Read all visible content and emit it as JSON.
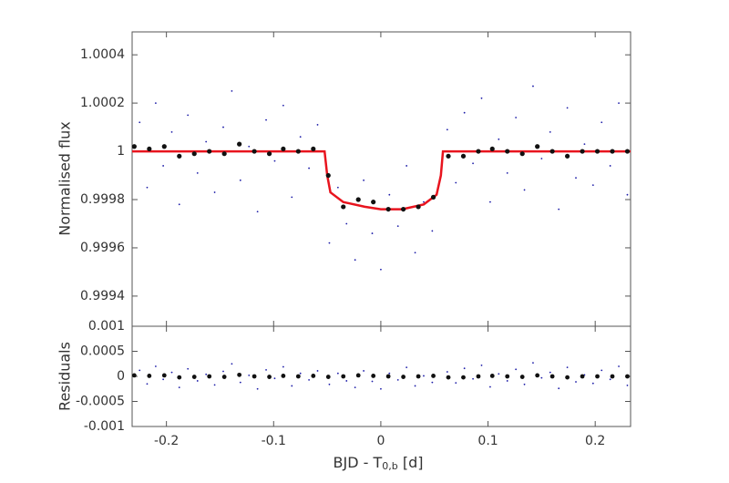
{
  "chart_data": [
    {
      "type": "scatter",
      "ylabel": "Normalised flux",
      "xlim": [
        -0.232,
        0.233
      ],
      "xticks": [
        -0.2,
        -0.1,
        0,
        0.1,
        0.2
      ],
      "ylim": [
        0.999275,
        1.000495
      ],
      "yticks": [
        0.9994,
        0.9996,
        0.9998,
        1,
        1.0002,
        1.0004
      ],
      "series": [
        {
          "mode": "markers",
          "size": 0.9,
          "color": "#1c1ca8",
          "x": [
            -0.225,
            -0.218,
            -0.21,
            -0.203,
            -0.195,
            -0.188,
            -0.18,
            -0.171,
            -0.163,
            -0.155,
            -0.147,
            -0.139,
            -0.131,
            -0.123,
            -0.115,
            -0.107,
            -0.099,
            -0.091,
            -0.083,
            -0.075,
            -0.067,
            -0.059,
            -0.048,
            -0.04,
            -0.032,
            -0.024,
            -0.016,
            -0.008,
            0.0,
            0.008,
            0.016,
            0.024,
            0.032,
            0.04,
            0.048,
            0.062,
            0.07,
            0.078,
            0.086,
            0.094,
            0.102,
            0.11,
            0.118,
            0.126,
            0.134,
            0.142,
            0.15,
            0.158,
            0.166,
            0.174,
            0.182,
            0.19,
            0.198,
            0.206,
            0.214,
            0.222,
            0.23
          ],
          "values": [
            1.00012,
            0.99985,
            1.0002,
            0.99994,
            1.00008,
            0.99978,
            1.00015,
            0.99991,
            1.00004,
            0.99983,
            1.0001,
            1.00025,
            0.99988,
            1.00002,
            0.99975,
            1.00013,
            0.99996,
            1.00019,
            0.99981,
            1.00006,
            0.99993,
            1.00011,
            0.99962,
            0.99985,
            0.9997,
            0.99955,
            0.99988,
            0.99966,
            0.99951,
            0.99982,
            0.99969,
            0.99994,
            0.99958,
            0.99979,
            0.99967,
            1.00009,
            0.99987,
            1.00016,
            0.99995,
            1.00022,
            0.99979,
            1.00005,
            0.99991,
            1.00014,
            0.99984,
            1.00027,
            0.99997,
            1.00008,
            0.99976,
            1.00018,
            0.99989,
            1.00003,
            0.99986,
            1.00012,
            0.99994,
            1.0002,
            0.99982
          ]
        },
        {
          "mode": "line",
          "width": 2.5,
          "color": "#e8141e",
          "x": [
            -0.232,
            -0.0525,
            -0.05,
            -0.047,
            -0.035,
            -0.015,
            0,
            0.02,
            0.04,
            0.052,
            0.056,
            0.058,
            0.233
          ],
          "values": [
            1,
            1,
            0.9999,
            0.99983,
            0.99979,
            0.99977,
            0.99976,
            0.99976,
            0.99978,
            0.99982,
            0.9999,
            1,
            1
          ]
        },
        {
          "mode": "markers",
          "size": 2.6,
          "color": "#111111",
          "x": [
            -0.23,
            -0.216,
            -0.202,
            -0.188,
            -0.174,
            -0.16,
            -0.146,
            -0.132,
            -0.118,
            -0.104,
            -0.091,
            -0.077,
            -0.063,
            -0.049,
            -0.035,
            -0.021,
            -0.007,
            0.007,
            0.021,
            0.035,
            0.049,
            0.063,
            0.077,
            0.091,
            0.104,
            0.118,
            0.132,
            0.146,
            0.16,
            0.174,
            0.188,
            0.202,
            0.216,
            0.23
          ],
          "values": [
            1.00002,
            1.00001,
            1.00002,
            0.99998,
            0.99999,
            1.0,
            0.99999,
            1.00003,
            1.0,
            0.99999,
            1.00001,
            1.0,
            1.00001,
            0.9999,
            0.99977,
            0.9998,
            0.99979,
            0.99976,
            0.99976,
            0.99977,
            0.99981,
            0.99998,
            0.99998,
            1.0,
            1.00001,
            1.0,
            0.99999,
            1.00002,
            1.0,
            0.99998,
            1.0,
            1.0,
            1.0,
            1.0
          ]
        }
      ]
    },
    {
      "type": "scatter",
      "ylabel": "Residuals",
      "xlabel": [
        "BJD - T",
        "0,b",
        " [d]"
      ],
      "xlim": [
        -0.232,
        0.233
      ],
      "xticks": [
        -0.2,
        -0.1,
        0,
        0.1,
        0.2
      ],
      "ylim": [
        -0.001,
        0.001
      ],
      "yticks": [
        -0.001,
        -0.0005,
        0,
        0.0005,
        0.001
      ],
      "series": [
        {
          "mode": "markers",
          "size": 0.9,
          "color": "#1c1ca8",
          "x": [
            -0.225,
            -0.218,
            -0.21,
            -0.203,
            -0.195,
            -0.188,
            -0.18,
            -0.171,
            -0.163,
            -0.155,
            -0.147,
            -0.139,
            -0.131,
            -0.123,
            -0.115,
            -0.107,
            -0.099,
            -0.091,
            -0.083,
            -0.075,
            -0.067,
            -0.059,
            -0.048,
            -0.04,
            -0.032,
            -0.024,
            -0.016,
            -0.008,
            0.0,
            0.008,
            0.016,
            0.024,
            0.032,
            0.04,
            0.048,
            0.062,
            0.07,
            0.078,
            0.086,
            0.094,
            0.102,
            0.11,
            0.118,
            0.126,
            0.134,
            0.142,
            0.15,
            0.158,
            0.166,
            0.174,
            0.182,
            0.19,
            0.198,
            0.206,
            0.214,
            0.222,
            0.23
          ],
          "values": [
            0.00012,
            -0.00015,
            0.0002,
            -6e-05,
            8e-05,
            -0.00022,
            0.00015,
            -9e-05,
            4e-05,
            -0.00017,
            0.0001,
            0.00025,
            -0.00012,
            2e-05,
            -0.00025,
            0.00013,
            -4e-05,
            0.00019,
            -0.00019,
            6e-05,
            -7e-05,
            0.00011,
            -0.00016,
            6e-05,
            -9e-05,
            -0.00022,
            0.00011,
            -0.0001,
            -0.00025,
            6e-05,
            -7e-05,
            0.00018,
            -0.00019,
            1e-05,
            -0.00012,
            9e-05,
            -0.00013,
            0.00016,
            -5e-05,
            0.00022,
            -0.00021,
            5e-05,
            -9e-05,
            0.00014,
            -0.00016,
            0.00027,
            -3e-05,
            8e-05,
            -0.00024,
            0.00018,
            -0.00011,
            3e-05,
            -0.00014,
            0.00012,
            -6e-05,
            0.0002,
            -0.00018
          ]
        },
        {
          "mode": "markers",
          "size": 2.4,
          "color": "#111111",
          "x": [
            -0.23,
            -0.216,
            -0.202,
            -0.188,
            -0.174,
            -0.16,
            -0.146,
            -0.132,
            -0.118,
            -0.104,
            -0.091,
            -0.077,
            -0.063,
            -0.049,
            -0.035,
            -0.021,
            -0.007,
            0.007,
            0.021,
            0.035,
            0.049,
            0.063,
            0.077,
            0.091,
            0.104,
            0.118,
            0.132,
            0.146,
            0.16,
            0.174,
            0.188,
            0.202,
            0.216,
            0.23
          ],
          "values": [
            2e-05,
            1e-05,
            2e-05,
            -2e-05,
            -1e-05,
            0,
            -1e-05,
            3e-05,
            0,
            -1e-05,
            1e-05,
            0,
            1e-05,
            -1e-05,
            0,
            2e-05,
            1e-05,
            0,
            -1e-05,
            0,
            1e-05,
            -2e-05,
            -2e-05,
            0,
            1e-05,
            0,
            -1e-05,
            2e-05,
            0,
            -2e-05,
            0,
            0,
            0,
            0
          ]
        }
      ]
    }
  ]
}
